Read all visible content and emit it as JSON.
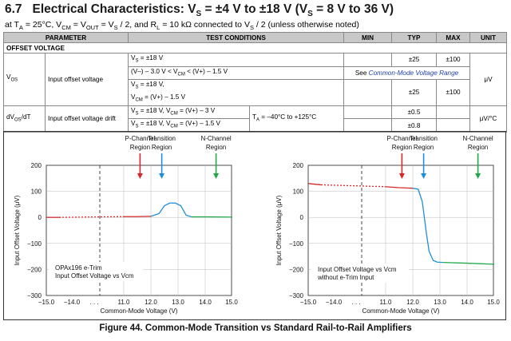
{
  "heading": {
    "section": "6.7",
    "title_pre": "Electrical Characteristics: V",
    "title_s1": "S",
    "title_mid": " = ±4 V to ±18 V (V",
    "title_s2": "S",
    "title_post": " = 8 V to 36 V)"
  },
  "conditions": {
    "t1": "at T",
    "s1": "A",
    "t2": " = 25°C, V",
    "s2": "CM",
    "t3": " = V",
    "s3": "OUT",
    "t4": " = V",
    "s4": "S",
    "t5": " / 2, and R",
    "s5": "L",
    "t6": " = 10 kΩ connected to V",
    "s6": "S",
    "t7": " / 2 (unless otherwise noted)"
  },
  "table": {
    "headers": [
      "PARAMETER",
      "TEST CONDITIONS",
      "MIN",
      "TYP",
      "MAX",
      "UNIT"
    ],
    "section": "OFFSET VOLTAGE",
    "vos_symbol": "V",
    "vos_sub": "OS",
    "vos_name": "Input offset voltage",
    "r1_cond": "V",
    "r1_cond_sub": "S",
    "r1_cond_post": " = ±18 V",
    "r1_typ": "±25",
    "r1_max": "±100",
    "r1_unit": "μV",
    "r2_cond_a": "(V–) – 3.0 V < V",
    "r2_cond_sub": "CM",
    "r2_cond_b": " < (V+) – 1.5 V",
    "r2_note_pre": "See ",
    "r2_note_link": "Common-Mode Voltage Range",
    "r3_cond_l1a": "V",
    "r3_cond_l1s": "S",
    "r3_cond_l1b": " = ±18 V,",
    "r3_cond_l2a": "V",
    "r3_cond_l2s": "CM",
    "r3_cond_l2b": " = (V+) – 1.5 V",
    "r3_typ": "±25",
    "r3_max": "±100",
    "drift_symbol_a": "dV",
    "drift_symbol_s": "OS",
    "drift_symbol_b": "/dT",
    "drift_name": "Input offset voltage drift",
    "r4_cond_a": "V",
    "r4_cond_s1": "S",
    "r4_cond_b": " = ±18 V, V",
    "r4_cond_s2": "CM",
    "r4_cond_c": " = (V+) – 3 V",
    "r4_typ": "±0.5",
    "r5_cond_a": "V",
    "r5_cond_s1": "S",
    "r5_cond_b": " = ±18 V, V",
    "r5_cond_s2": "CM",
    "r5_cond_c": " = (V+) – 1.5 V",
    "r5_typ": "±0.8",
    "temp_a": "T",
    "temp_s": "A",
    "temp_b": " = –40°C to +125°C",
    "drift_unit": "μV/°C"
  },
  "chart_data": [
    {
      "type": "line",
      "region_labels": [
        [
          "P-Channel",
          "Region"
        ],
        [
          "Transition",
          "Region"
        ],
        [
          "N-Channel",
          "Region"
        ]
      ],
      "ylabel": "Input Offset Voltage (μV)",
      "xlabel": "Common-Mode Voltage (V)",
      "xlim": [
        -15,
        15
      ],
      "ylim": [
        -300,
        200
      ],
      "x_ticks": [
        "-15.0",
        "-14.0",
        "11.0",
        "12.0",
        "13.0",
        "14.0",
        "15.0"
      ],
      "y_ticks": [
        "200",
        "100",
        "0",
        "-100",
        "-200",
        "-300"
      ],
      "annotation": [
        "OPAx196 e-Trim",
        "Input Offset Voltage vs Vcm"
      ],
      "series": [
        {
          "color": "#d62828",
          "x": [
            -15,
            -14.5,
            10.5,
            11.5,
            12.0
          ],
          "y": [
            0,
            0,
            3,
            3,
            4
          ]
        },
        {
          "color": "#1f8fd8",
          "x": [
            12.0,
            12.3,
            12.5,
            12.7,
            12.9,
            13.1,
            13.3,
            13.5
          ],
          "y": [
            4,
            15,
            45,
            55,
            55,
            45,
            8,
            2
          ]
        },
        {
          "color": "#22a84a",
          "x": [
            13.5,
            14.0,
            15.0
          ],
          "y": [
            2,
            2,
            1
          ]
        }
      ]
    },
    {
      "type": "line",
      "region_labels": [
        [
          "P-Channel",
          "Region"
        ],
        [
          "Transition",
          "Region"
        ],
        [
          "N-Channel",
          "Region"
        ]
      ],
      "ylabel": "Input Offset Voltage (μV)",
      "xlabel": "Common-Mode Voltage (V)",
      "xlim": [
        -15,
        15
      ],
      "ylim": [
        -300,
        200
      ],
      "x_ticks": [
        "-15.0",
        "-14.0",
        "11.0",
        "12.0",
        "13.0",
        "14.0",
        "15.0"
      ],
      "y_ticks": [
        "200",
        "100",
        "0",
        "-100",
        "-200",
        "-300"
      ],
      "annotation": [
        "Input Offset Voltage vs Vcm",
        "without e-Trim Input"
      ],
      "series": [
        {
          "color": "#d62828",
          "x": [
            -15,
            -14.5,
            10.5,
            11.5,
            12.0
          ],
          "y": [
            130,
            125,
            118,
            114,
            112
          ]
        },
        {
          "color": "#1f8fd8",
          "x": [
            12.0,
            12.2,
            12.35,
            12.5,
            12.6,
            12.75,
            12.9,
            13.1
          ],
          "y": [
            112,
            108,
            60,
            -60,
            -130,
            -165,
            -172,
            -173
          ]
        },
        {
          "color": "#22a84a",
          "x": [
            13.1,
            14.0,
            15.0
          ],
          "y": [
            -173,
            -176,
            -180
          ]
        }
      ]
    }
  ],
  "caption": "Figure 44.  Common-Mode Transition vs Standard Rail-to-Rail Amplifiers"
}
